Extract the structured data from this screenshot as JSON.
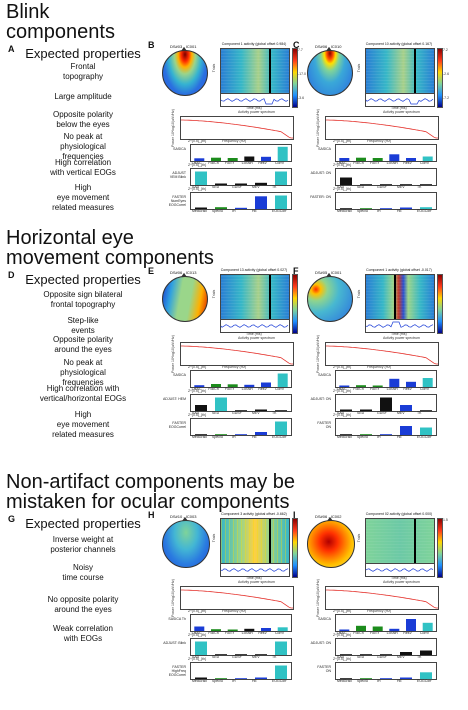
{
  "sections": [
    {
      "title": "Blink\ncomponents",
      "letter": "A",
      "expected_heading": "Expected properties",
      "properties": [
        "Frontal\ntopography",
        "Large amplitude",
        "Opposite polarity\nbelow the eyes",
        "No peak at\nphysiological\nfrequencies",
        "High correlation\nwith vertical EOGs",
        "High\neye movement\nrelated measures"
      ],
      "panels": [
        {
          "letter": "B",
          "subject_label": "DS#03 - IC001",
          "erp_title": "Component 1 activity (global offset 0.984)",
          "color_scale": [
            "7.7",
            "-17.0",
            "-3.6"
          ],
          "feature_rows": [
            {
              "label": "SASICA",
              "categories": [
                "LatAC",
                "FocCh",
                "FocTr",
                "LoSNR",
                "ResV",
                "CorrV"
              ],
              "values": [
                0.18,
                0.22,
                0.2,
                0.3,
                0.28,
                0.95
              ],
              "colors": [
                "#1a3cd6",
                "#1c8c1c",
                "#1c8c1c",
                "#111111",
                "#1a3cd6",
                "#30c2c4"
              ]
            },
            {
              "label": "ADJUST\nVEM Blink",
              "categories": [
                "SAD",
                "SED",
                "GDSF",
                "MEV",
                "TK"
              ],
              "values": [
                0.9,
                0.1,
                0.1,
                0.15,
                0.9
              ],
              "colors": [
                "#30c2c4",
                "#111111",
                "#111111",
                "#111111",
                "#30c2c4"
              ]
            },
            {
              "label": "FASTER\nNumEyes\nEOGCorrel",
              "categories": [
                "MedGrad",
                "SpecSl",
                "IH",
                "HE",
                "EOGCorr"
              ],
              "values": [
                0.1,
                0.12,
                0.08,
                0.85,
                0.9
              ],
              "colors": [
                "#111111",
                "#1c8c1c",
                "#1a3cd6",
                "#1a3cd6",
                "#30c2c4"
              ]
            }
          ]
        },
        {
          "letter": "C",
          "subject_label": "DS#06 - IC010",
          "erp_title": "Component 10 activity (global offset 0.167)",
          "color_scale": [
            "7.2",
            "-2.6",
            "-7.2"
          ],
          "feature_rows": [
            {
              "label": "SASICA",
              "categories": [
                "LatAC",
                "FocCh",
                "FocTr",
                "LoSNR",
                "ResV",
                "CorrV"
              ],
              "values": [
                0.2,
                0.22,
                0.2,
                0.45,
                0.2,
                0.3
              ],
              "colors": [
                "#1a3cd6",
                "#1c8c1c",
                "#1c8c1c",
                "#1a3cd6",
                "#1a3cd6",
                "#30c2c4"
              ]
            },
            {
              "label": "ADJUST: ON",
              "categories": [
                "SAD",
                "SED",
                "GDSF",
                "MEV",
                "TK"
              ],
              "values": [
                0.5,
                0.05,
                0.05,
                0.05,
                0.05
              ],
              "colors": [
                "#111111",
                "#111111",
                "#111111",
                "#111111",
                "#111111"
              ]
            },
            {
              "label": "FASTER: ON",
              "categories": [
                "MedGrad",
                "SpecSl",
                "IH",
                "HE",
                "EOGCorr"
              ],
              "values": [
                0.05,
                0.05,
                0.05,
                0.1,
                0.12
              ],
              "colors": [
                "#111111",
                "#1c8c1c",
                "#1a3cd6",
                "#1a3cd6",
                "#30c2c4"
              ]
            }
          ]
        }
      ]
    },
    {
      "title": "Horizontal eye\nmovement components",
      "letter": "D",
      "expected_heading": "Expected properties",
      "properties": [
        "Opposite sign bilateral\nfrontal topography",
        "Step-like\nevents",
        "Opposite polarity\naround the eyes",
        "No peak at\nphysiological\nfrequencies",
        "High correlation with\nvertical/horizontal EOGs",
        "High\neye movement\nrelated measures"
      ],
      "panels": [
        {
          "letter": "E",
          "subject_label": "DS#06 - IC013",
          "erp_title": "Component 13 activity (global offset 0.027)",
          "color_scale": [
            "",
            "",
            ""
          ],
          "feature_rows": [
            {
              "label": "SASICA",
              "categories": [
                "LatAC",
                "FocCh",
                "FocTr",
                "LoSNR",
                "ResV",
                "CorrV"
              ],
              "values": [
                0.12,
                0.2,
                0.18,
                0.15,
                0.3,
                0.9
              ],
              "colors": [
                "#1a3cd6",
                "#1c8c1c",
                "#1c8c1c",
                "#1a3cd6",
                "#1a3cd6",
                "#30c2c4"
              ]
            },
            {
              "label": "ADJUST: HEM",
              "categories": [
                "SAD",
                "SED",
                "GDSF",
                "MEV",
                "TK"
              ],
              "values": [
                0.4,
                0.9,
                0.05,
                0.1,
                0.05
              ],
              "colors": [
                "#111111",
                "#30c2c4",
                "#111111",
                "#111111",
                "#111111"
              ]
            },
            {
              "label": "FASTER\nEOGCorrel",
              "categories": [
                "MedGrad",
                "SpecSl",
                "IH",
                "HE",
                "EOGCorr"
              ],
              "values": [
                0.05,
                0.05,
                0.05,
                0.2,
                0.9
              ],
              "colors": [
                "#111111",
                "#1c8c1c",
                "#1a3cd6",
                "#1a3cd6",
                "#30c2c4"
              ]
            }
          ]
        },
        {
          "letter": "F",
          "subject_label": "DS#05 - IC001",
          "erp_title": "Component 1 activity (global offset -0.017)",
          "color_scale": [
            "",
            "",
            ""
          ],
          "feature_rows": [
            {
              "label": "SASICA",
              "categories": [
                "LatAC",
                "FocCh",
                "FocTr",
                "LoSNR",
                "ResV",
                "CorrV"
              ],
              "values": [
                0.1,
                0.12,
                0.1,
                0.55,
                0.35,
                0.6
              ],
              "colors": [
                "#1a3cd6",
                "#1c8c1c",
                "#1c8c1c",
                "#1a3cd6",
                "#1a3cd6",
                "#30c2c4"
              ]
            },
            {
              "label": "ADJUST: ON",
              "categories": [
                "SAD",
                "SED",
                "GDSF",
                "MEV",
                "TK"
              ],
              "values": [
                0.1,
                0.1,
                0.9,
                0.4,
                0.05
              ],
              "colors": [
                "#111111",
                "#111111",
                "#111111",
                "#1a3cd6",
                "#111111"
              ]
            },
            {
              "label": "FASTER\nON",
              "categories": [
                "MedGrad",
                "SpecSl",
                "IH",
                "HE",
                "EOGCorr"
              ],
              "values": [
                0.05,
                0.05,
                0.05,
                0.6,
                0.5
              ],
              "colors": [
                "#111111",
                "#1c8c1c",
                "#1a3cd6",
                "#1a3cd6",
                "#30c2c4"
              ]
            }
          ]
        }
      ]
    },
    {
      "title": "Non-artifact components may be\nmistaken for ocular components",
      "letter": "G",
      "expected_heading": "Expected properties",
      "properties": [
        "Inverse weight at\nposterior channels",
        "Noisy\ntime course",
        "No opposite polarity\naround the eyes",
        "Weak correlation\nwith EOGs"
      ],
      "panels": [
        {
          "letter": "H",
          "subject_label": "DS#10 - IC003",
          "erp_title": "Component 3 activity (global offset -0.662)",
          "color_scale": [
            "",
            "",
            ""
          ],
          "feature_rows": [
            {
              "label": "SASICA  Th",
              "categories": [
                "LatAC",
                "FocCh",
                "FocTr",
                "LoSNR",
                "ResV",
                "CorrV"
              ],
              "values": [
                0.3,
                0.12,
                0.1,
                0.15,
                0.2,
                0.25
              ],
              "colors": [
                "#1a3cd6",
                "#1c8c1c",
                "#1c8c1c",
                "#111111",
                "#1a3cd6",
                "#30c2c4"
              ]
            },
            {
              "label": "ADJUST: Blink",
              "categories": [
                "SAD",
                "SED",
                "GDSF",
                "MEV",
                "TK"
              ],
              "values": [
                0.9,
                0.05,
                0.05,
                0.05,
                0.9
              ],
              "colors": [
                "#30c2c4",
                "#111111",
                "#111111",
                "#111111",
                "#30c2c4"
              ]
            },
            {
              "label": "FASTER\nHighFreq\nEOGCorrel",
              "categories": [
                "MedGrad",
                "SpecSl",
                "IH",
                "HE",
                "EOGCorr"
              ],
              "values": [
                0.1,
                0.05,
                0.05,
                0.1,
                0.9
              ],
              "colors": [
                "#111111",
                "#1c8c1c",
                "#1a3cd6",
                "#1a3cd6",
                "#30c2c4"
              ]
            }
          ]
        },
        {
          "letter": "I",
          "subject_label": "DS#06 - IC002",
          "erp_title": "Component 02 activity (global offset 0.000)",
          "color_scale": [
            "1.5",
            "",
            ""
          ],
          "feature_rows": [
            {
              "label": "SASICA",
              "categories": [
                "LatAC",
                "FocCh",
                "FocTr",
                "LoSNR",
                "ResV",
                "CorrV"
              ],
              "values": [
                0.1,
                0.35,
                0.3,
                0.15,
                0.8,
                0.55
              ],
              "colors": [
                "#1a3cd6",
                "#1c8c1c",
                "#1c8c1c",
                "#1a3cd6",
                "#1a3cd6",
                "#30c2c4"
              ]
            },
            {
              "label": "ADJUST: ON",
              "categories": [
                "SAD",
                "SED",
                "GDSF",
                "MEV",
                "TK"
              ],
              "values": [
                0.05,
                0.05,
                0.05,
                0.2,
                0.3
              ],
              "colors": [
                "#111111",
                "#111111",
                "#111111",
                "#111111",
                "#111111"
              ]
            },
            {
              "label": "FASTER\nON",
              "categories": [
                "MedGrad",
                "SpecSl",
                "IH",
                "HE",
                "EOGCorr"
              ],
              "values": [
                0.05,
                0.05,
                0.05,
                0.1,
                0.45
              ],
              "colors": [
                "#111111",
                "#1c8c1c",
                "#1a3cd6",
                "#1a3cd6",
                "#30c2c4"
              ]
            }
          ]
        }
      ]
    }
  ],
  "axis_text": {
    "trials": "Trials",
    "time_ms": "Time (ms)",
    "spectrum_title": "Activity power spectrum",
    "frequency": "Frequency (Hz)",
    "power": "Power 10*log10(uV²/Hz)",
    "z_label": "Z^{0.5}_{th}"
  }
}
